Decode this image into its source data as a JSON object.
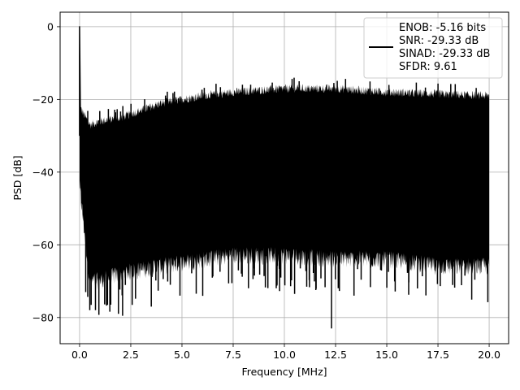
{
  "chart_data": {
    "type": "line",
    "xlabel": "Frequency [MHz]",
    "ylabel": "PSD [dB]",
    "xlim": [
      -0.95,
      20.95
    ],
    "ylim": [
      -87.2,
      4.0
    ],
    "xticks": [
      0.0,
      2.5,
      5.0,
      7.5,
      10.0,
      12.5,
      15.0,
      17.5,
      20.0
    ],
    "xtick_labels": [
      "0.0",
      "2.5",
      "5.0",
      "7.5",
      "10.0",
      "12.5",
      "15.0",
      "17.5",
      "20.0"
    ],
    "yticks": [
      0,
      -20,
      -40,
      -60,
      -80
    ],
    "ytick_labels": [
      "0",
      "−20",
      "−40",
      "−60",
      "−80"
    ],
    "grid": true,
    "legend_position": "top-right",
    "line_color": "#000000",
    "series": [
      {
        "name": "ENOB: -5.16 bits\nSNR: -29.33 dB\nSINAD: -29.33 dB\nSFDR: 9.61",
        "legend_lines": [
          "ENOB: -5.16 bits",
          "SNR: -29.33 dB",
          "SINAD: -29.33 dB",
          "SFDR: 9.61"
        ],
        "x_range": [
          0.0,
          20.0
        ],
        "upper_envelope": [
          [
            0.0,
            -22
          ],
          [
            0.5,
            -27
          ],
          [
            1.0,
            -26
          ],
          [
            2.0,
            -25
          ],
          [
            3.0,
            -23
          ],
          [
            4.0,
            -21
          ],
          [
            5.0,
            -20
          ],
          [
            6.0,
            -19
          ],
          [
            7.5,
            -18
          ],
          [
            10.0,
            -17
          ],
          [
            12.5,
            -17
          ],
          [
            15.0,
            -18
          ],
          [
            17.5,
            -18.5
          ],
          [
            20.0,
            -19
          ]
        ],
        "lower_envelope": [
          [
            0.0,
            -44
          ],
          [
            0.5,
            -70
          ],
          [
            1.0,
            -70
          ],
          [
            2.0,
            -68
          ],
          [
            3.0,
            -67
          ],
          [
            5.0,
            -65
          ],
          [
            7.5,
            -63
          ],
          [
            10.0,
            -63
          ],
          [
            12.5,
            -64
          ],
          [
            15.0,
            -64
          ],
          [
            17.5,
            -66
          ],
          [
            20.0,
            -66
          ]
        ],
        "peaks": [
          {
            "x": 0.0,
            "y": 0.0
          }
        ],
        "deep_dips": [
          {
            "x": 0.3,
            "y": -73
          },
          {
            "x": 0.5,
            "y": -78
          },
          {
            "x": 1.9,
            "y": -79
          },
          {
            "x": 2.1,
            "y": -79.5
          },
          {
            "x": 3.5,
            "y": -77
          },
          {
            "x": 4.9,
            "y": -74
          },
          {
            "x": 10.5,
            "y": -73.5
          },
          {
            "x": 12.3,
            "y": -83
          },
          {
            "x": 13.4,
            "y": -74
          },
          {
            "x": 16.5,
            "y": -72
          }
        ]
      }
    ]
  }
}
